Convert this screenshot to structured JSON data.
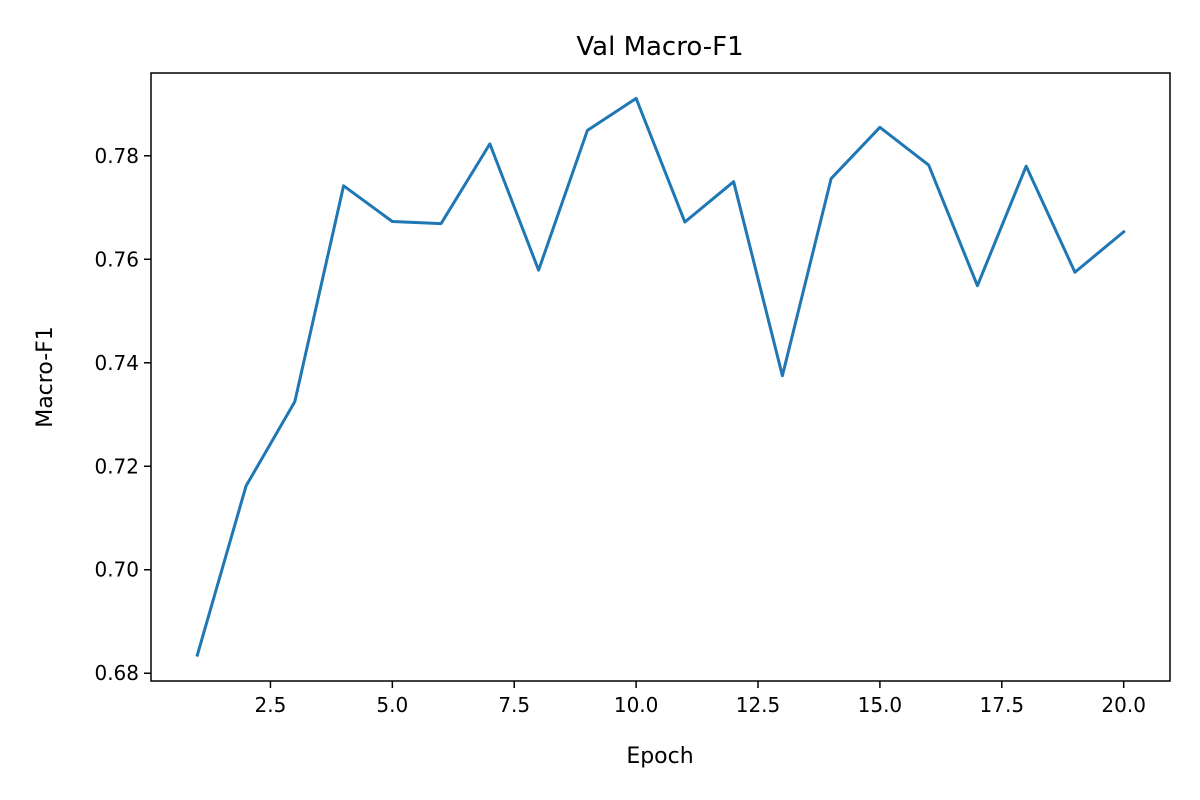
{
  "chart_data": {
    "type": "line",
    "title": "Val Macro-F1",
    "xlabel": "Epoch",
    "ylabel": "Macro-F1",
    "xlim": [
      0.05,
      20.95
    ],
    "ylim": [
      0.6785,
      0.796
    ],
    "xticks": [
      2.5,
      5.0,
      7.5,
      10.0,
      12.5,
      15.0,
      17.5,
      20.0
    ],
    "xtick_labels": [
      "2.5",
      "5.0",
      "7.5",
      "10.0",
      "12.5",
      "15.0",
      "17.5",
      "20.0"
    ],
    "yticks": [
      0.68,
      0.7,
      0.72,
      0.74,
      0.76,
      0.78
    ],
    "ytick_labels": [
      "0.68",
      "0.70",
      "0.72",
      "0.74",
      "0.76",
      "0.78"
    ],
    "grid": false,
    "series": [
      {
        "color": "#1f77b4",
        "x": [
          1,
          2,
          3,
          4,
          5,
          6,
          7,
          8,
          9,
          10,
          11,
          12,
          13,
          14,
          15,
          16,
          17,
          18,
          19,
          20
        ],
        "y": [
          0.6835,
          0.7162,
          0.7325,
          0.7742,
          0.7673,
          0.7669,
          0.7823,
          0.7579,
          0.7849,
          0.7911,
          0.7672,
          0.775,
          0.7375,
          0.7756,
          0.7855,
          0.7782,
          0.7549,
          0.778,
          0.7575,
          0.7653
        ]
      }
    ]
  }
}
